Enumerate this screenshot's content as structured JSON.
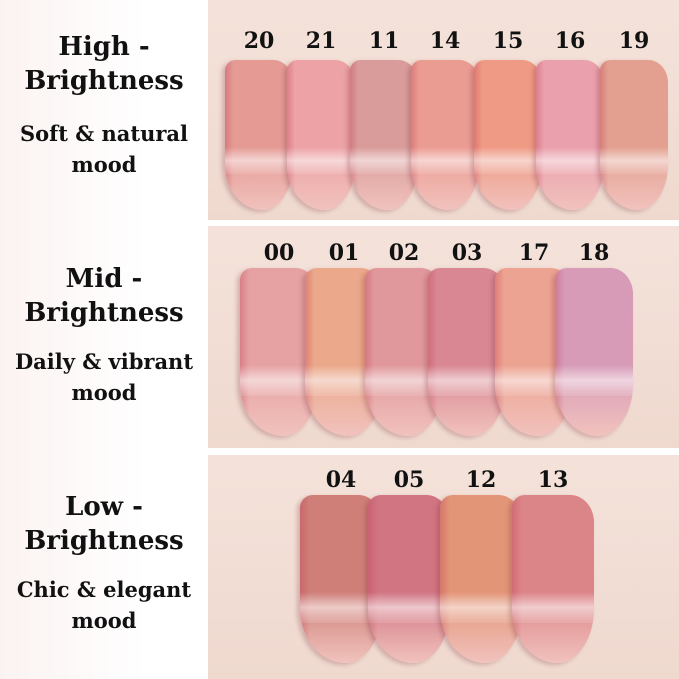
{
  "groups": [
    {
      "title_line1": "High -",
      "title_line2": "Brightness",
      "mood_line1": "Soft & natural",
      "mood_line2": "mood",
      "shades": [
        {
          "code": "20",
          "color": "#e59a94"
        },
        {
          "code": "21",
          "color": "#eda3a6"
        },
        {
          "code": "11",
          "color": "#d99c9a"
        },
        {
          "code": "14",
          "color": "#eb9c92"
        },
        {
          "code": "15",
          "color": "#ef9a84"
        },
        {
          "code": "16",
          "color": "#eba0ad"
        },
        {
          "code": "19",
          "color": "#e3a090"
        }
      ]
    },
    {
      "title_line1": "Mid -",
      "title_line2": "Brightness",
      "mood_line1": "Daily & vibrant",
      "mood_line2": "mood",
      "shades": [
        {
          "code": "00",
          "color": "#e6a2a3"
        },
        {
          "code": "01",
          "color": "#eba88a"
        },
        {
          "code": "02",
          "color": "#e0989c"
        },
        {
          "code": "03",
          "color": "#d98893"
        },
        {
          "code": "17",
          "color": "#eda391"
        },
        {
          "code": "18",
          "color": "#d79bb8"
        }
      ]
    },
    {
      "title_line1": "Low -",
      "title_line2": "Brightness",
      "mood_line1": "Chic & elegant",
      "mood_line2": "mood",
      "shades": [
        {
          "code": "04",
          "color": "#cf7f78"
        },
        {
          "code": "05",
          "color": "#d17583"
        },
        {
          "code": "12",
          "color": "#e39577"
        },
        {
          "code": "13",
          "color": "#dc8588"
        }
      ]
    }
  ]
}
